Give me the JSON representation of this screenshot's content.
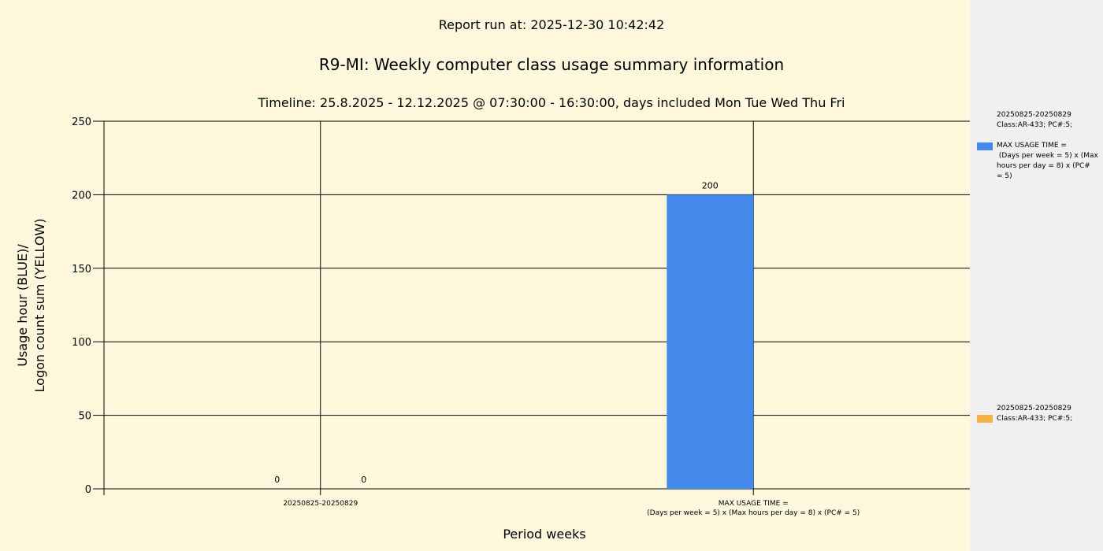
{
  "header": {
    "report_run": "Report run at: 2025-12-30 10:42:42",
    "title": "R9-MI: Weekly computer class usage summary information",
    "timeline": "Timeline:  25.8.2025  - 12.12.2025  @  07:30:00 -  16:30:00, days included Mon Tue Wed Thu Fri"
  },
  "chart_data": {
    "type": "bar",
    "categories": [
      "20250825-20250829",
      "MAX USAGE TIME =\n(Days per week = 5) x (Max hours per day = 8) x (PC# = 5)"
    ],
    "series": [
      {
        "name": "20250825-20250829\nClass:AR-433; PC#:5;",
        "color": "#448aed",
        "values": [
          0,
          200
        ]
      },
      {
        "name": "20250825-20250829\nClass:AR-433; PC#:5;",
        "color": "#f6b143",
        "values": [
          0,
          0
        ]
      }
    ],
    "data_labels": [
      "0",
      "0",
      "200"
    ],
    "ylim": [
      0,
      250
    ],
    "yticks": [
      0,
      50,
      100,
      150,
      200,
      250
    ],
    "ylabel": "Usage hour (BLUE)/\nLogon count sum (YELLOW)",
    "xlabel": "Period weeks",
    "grid": true
  },
  "legend": {
    "items": [
      {
        "title": "20250825-20250829\nClass:AR-433; PC#:5;",
        "entry": "MAX USAGE TIME =\n (Days per week = 5) x (Max\nhours per day = 8) x (PC#\n= 5)",
        "color": "#448aed"
      },
      {
        "title": "20250825-20250829\nClass:AR-433; PC#:5;",
        "color": "#f6b143"
      }
    ]
  }
}
